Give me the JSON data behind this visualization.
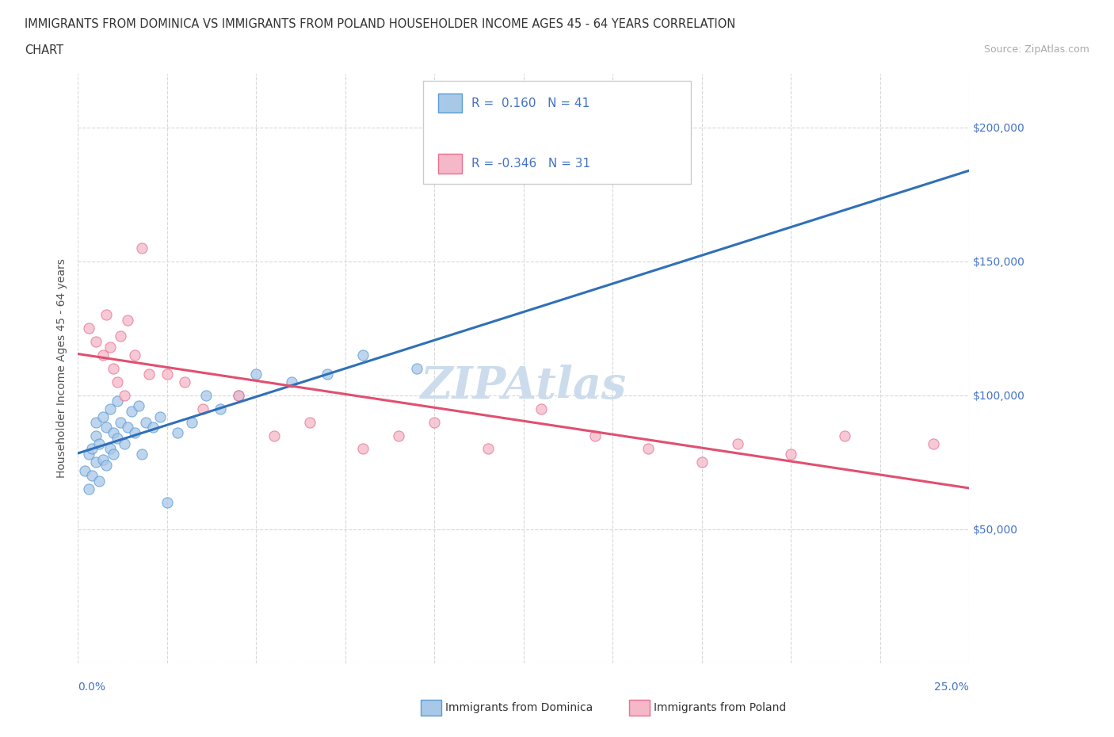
{
  "title_line1": "IMMIGRANTS FROM DOMINICA VS IMMIGRANTS FROM POLAND HOUSEHOLDER INCOME AGES 45 - 64 YEARS CORRELATION",
  "title_line2": "CHART",
  "source_text": "Source: ZipAtlas.com",
  "ylabel": "Householder Income Ages 45 - 64 years",
  "xlim": [
    0.0,
    0.25
  ],
  "ylim": [
    0,
    220000
  ],
  "yticks": [
    0,
    50000,
    100000,
    150000,
    200000
  ],
  "ytick_labels": [
    "",
    "$50,000",
    "$100,000",
    "$150,000",
    "$200,000"
  ],
  "xticks": [
    0.0,
    0.025,
    0.05,
    0.075,
    0.1,
    0.125,
    0.15,
    0.175,
    0.2,
    0.225,
    0.25
  ],
  "xtick_labels_show": [
    "0.0%",
    "",
    "",
    "",
    "",
    "",
    "",
    "",
    "",
    "",
    "25.0%"
  ],
  "dominica_R": 0.16,
  "dominica_N": 41,
  "poland_R": -0.346,
  "poland_N": 31,
  "dominica_fill": "#a8c8e8",
  "dominica_edge": "#5b9bd5",
  "poland_fill": "#f4b8c8",
  "poland_edge": "#e87090",
  "trend_dom_color": "#3070b8",
  "trend_pol_color": "#e05070",
  "watermark_color": "#ccdcec",
  "bg_color": "#ffffff",
  "grid_color": "#d8d8d8",
  "dominica_x": [
    0.002,
    0.003,
    0.003,
    0.004,
    0.004,
    0.005,
    0.005,
    0.005,
    0.006,
    0.006,
    0.007,
    0.007,
    0.008,
    0.008,
    0.009,
    0.009,
    0.01,
    0.01,
    0.011,
    0.011,
    0.012,
    0.013,
    0.014,
    0.015,
    0.016,
    0.017,
    0.018,
    0.019,
    0.021,
    0.023,
    0.025,
    0.028,
    0.032,
    0.036,
    0.04,
    0.045,
    0.05,
    0.06,
    0.07,
    0.08,
    0.095
  ],
  "dominica_y": [
    72000,
    65000,
    78000,
    80000,
    70000,
    75000,
    85000,
    90000,
    68000,
    82000,
    76000,
    92000,
    88000,
    74000,
    95000,
    80000,
    78000,
    86000,
    84000,
    98000,
    90000,
    82000,
    88000,
    94000,
    86000,
    96000,
    78000,
    90000,
    88000,
    92000,
    60000,
    86000,
    90000,
    100000,
    95000,
    100000,
    108000,
    105000,
    108000,
    115000,
    110000
  ],
  "poland_x": [
    0.003,
    0.005,
    0.007,
    0.008,
    0.009,
    0.01,
    0.011,
    0.012,
    0.013,
    0.014,
    0.016,
    0.018,
    0.02,
    0.025,
    0.03,
    0.035,
    0.045,
    0.055,
    0.065,
    0.08,
    0.09,
    0.1,
    0.115,
    0.13,
    0.145,
    0.16,
    0.175,
    0.185,
    0.2,
    0.215,
    0.24
  ],
  "poland_y": [
    125000,
    120000,
    115000,
    130000,
    118000,
    110000,
    105000,
    122000,
    100000,
    128000,
    115000,
    155000,
    108000,
    108000,
    105000,
    95000,
    100000,
    85000,
    90000,
    80000,
    85000,
    90000,
    80000,
    95000,
    85000,
    80000,
    75000,
    82000,
    78000,
    85000,
    82000
  ]
}
